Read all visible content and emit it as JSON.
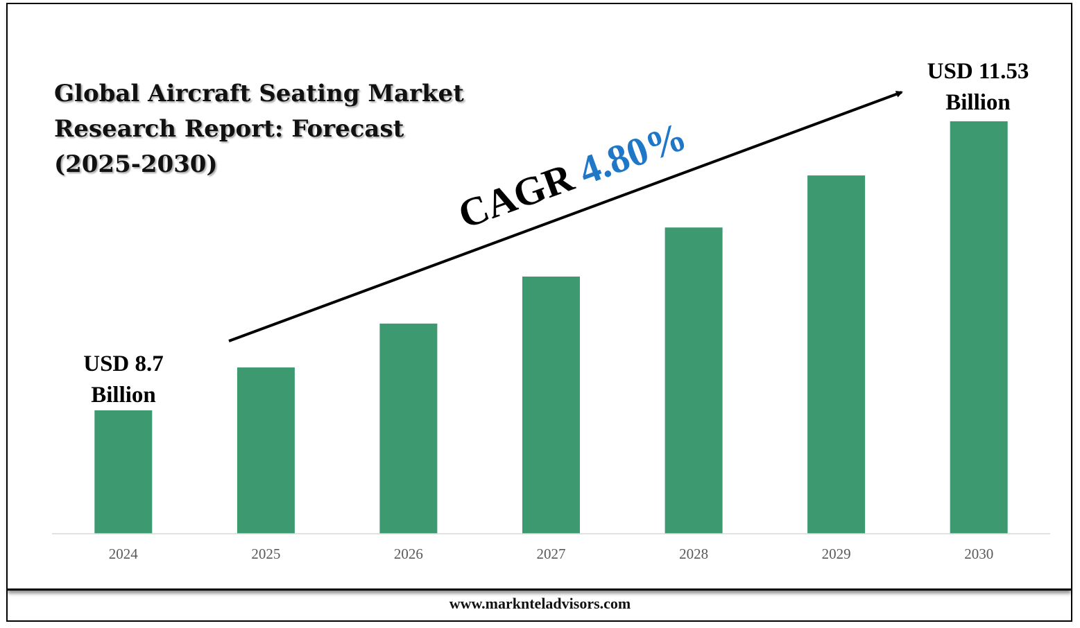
{
  "chart_data": {
    "type": "bar",
    "title_lines": [
      "Global Aircraft Seating Market",
      "Research Report: Forecast",
      "(2025-2030)"
    ],
    "categories": [
      "2024",
      "2025",
      "2026",
      "2027",
      "2028",
      "2029",
      "2030"
    ],
    "series": [
      {
        "values": [
          8.7,
          9.12,
          9.55,
          10.01,
          10.49,
          11.0,
          11.53
        ]
      }
    ],
    "bar_color": "#3d9970",
    "annotations": {
      "start_label": [
        "USD 8.7",
        "Billion"
      ],
      "end_label": [
        "USD 11.53",
        "Billion"
      ],
      "cagr_prefix": "CAGR",
      "cagr_value": "4.80%",
      "cagr_color": "#1f77c8"
    },
    "xlabel": "",
    "ylabel": "",
    "grid": false,
    "legend": "none"
  },
  "footer": {
    "url": "www.marknteladvisors.com"
  }
}
